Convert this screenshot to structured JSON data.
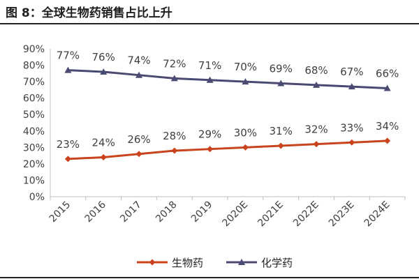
{
  "figure": {
    "title": "图 8：全球生物药销售占比上升"
  },
  "chart_data": {
    "type": "line",
    "title": "图 8：全球生物药销售占比上升",
    "xlabel": "",
    "ylabel": "",
    "categories": [
      "2015",
      "2016",
      "2017",
      "2018",
      "2019",
      "2020E",
      "2021E",
      "2022E",
      "2023E",
      "2024E"
    ],
    "ylim": [
      0,
      90
    ],
    "yticks": [
      "0%",
      "10%",
      "20%",
      "30%",
      "40%",
      "50%",
      "60%",
      "70%",
      "80%",
      "90%"
    ],
    "grid": false,
    "legend_position": "bottom",
    "series": [
      {
        "name": "生物药",
        "color": "#c9441c",
        "marker": "diamond",
        "values": [
          23,
          24,
          26,
          28,
          29,
          30,
          31,
          32,
          33,
          34
        ],
        "labels": [
          "23%",
          "24%",
          "26%",
          "28%",
          "29%",
          "30%",
          "31%",
          "32%",
          "33%",
          "34%"
        ]
      },
      {
        "name": "化学药",
        "color": "#4a4a72",
        "marker": "triangle",
        "values": [
          77,
          76,
          74,
          72,
          71,
          70,
          69,
          68,
          67,
          66
        ],
        "labels": [
          "77%",
          "76%",
          "74%",
          "72%",
          "71%",
          "70%",
          "69%",
          "68%",
          "67%",
          "66%"
        ]
      }
    ]
  }
}
